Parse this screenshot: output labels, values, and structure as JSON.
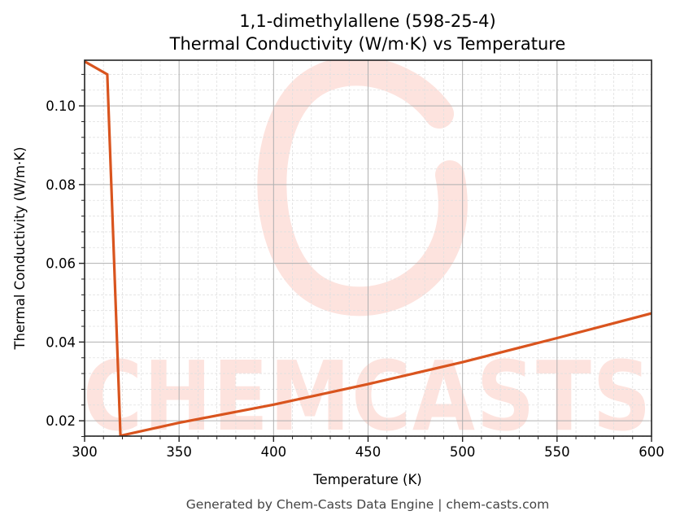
{
  "title": {
    "line1": "1,1-dimethylallene (598-25-4)",
    "line2": "Thermal Conductivity (W/m·K) vs Temperature"
  },
  "axes": {
    "xlabel": "Temperature (K)",
    "ylabel": "Thermal Conductivity (W/m·K)",
    "xticks": [
      "300",
      "350",
      "400",
      "450",
      "500",
      "550",
      "600"
    ],
    "yticks": [
      "0.02",
      "0.04",
      "0.06",
      "0.08",
      "0.10"
    ]
  },
  "footer": "Generated by Chem-Casts Data Engine | chem-casts.com",
  "watermark": "CHEMCASTS",
  "colors": {
    "line": "#d9541e",
    "watermark": "#fde3de",
    "grid_major": "#b0b0b0",
    "grid_minor": "#e0e0e0"
  },
  "chart_data": {
    "type": "line",
    "title": "1,1-dimethylallene (598-25-4) Thermal Conductivity (W/m·K) vs Temperature",
    "xlabel": "Temperature (K)",
    "ylabel": "Thermal Conductivity (W/m·K)",
    "xlim": [
      300,
      600
    ],
    "ylim": [
      0.0161,
      0.1116
    ],
    "grid": true,
    "legend": null,
    "series": [
      {
        "name": "Thermal Conductivity",
        "x": [
          300,
          312,
          319,
          350,
          400,
          450,
          500,
          550,
          600
        ],
        "y": [
          0.1113,
          0.108,
          0.0162,
          0.0195,
          0.0241,
          0.0293,
          0.0349,
          0.041,
          0.0473
        ]
      }
    ]
  }
}
